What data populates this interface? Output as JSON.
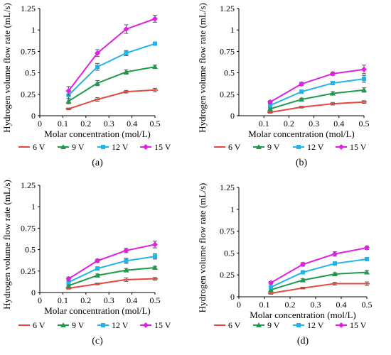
{
  "chart_data": [
    {
      "type": "line",
      "caption": "(a)",
      "xlabel": "Molar concentration (mol/L)",
      "ylabel": "Hydrogen volume flow rate (mL/s)",
      "xlim": [
        0,
        0.5
      ],
      "ylim": [
        0,
        1.25
      ],
      "xticks": [
        0,
        0.1,
        0.2,
        0.3,
        0.4,
        0.5
      ],
      "xtick_labels": [
        "0",
        "0.1",
        "0.2",
        "0.3",
        "0.4",
        "0.5"
      ],
      "yticks": [
        0,
        0.25,
        0.5,
        0.75,
        1,
        1.25
      ],
      "ytick_labels": [
        "0",
        "0.25",
        "0.5",
        "0.75",
        "1",
        "1.25"
      ],
      "legend_position": "bottom",
      "x": [
        0.125,
        0.25,
        0.375,
        0.5
      ],
      "series": [
        {
          "name": "6 V",
          "color": "#e8453c",
          "marker": "line",
          "values": [
            0.08,
            0.19,
            0.28,
            0.3
          ],
          "err": [
            0.01,
            0.02,
            0.015,
            0.02
          ]
        },
        {
          "name": "9 V",
          "color": "#1f9a4b",
          "marker": "triangle",
          "values": [
            0.17,
            0.38,
            0.51,
            0.57
          ],
          "err": [
            0.03,
            0.03,
            0.025,
            0.02
          ]
        },
        {
          "name": "12 V",
          "color": "#1fb5ea",
          "marker": "square",
          "values": [
            0.24,
            0.57,
            0.73,
            0.84
          ],
          "err": [
            0.04,
            0.04,
            0.03,
            0.015
          ]
        },
        {
          "name": "15 V",
          "color": "#e020e0",
          "marker": "diamond",
          "values": [
            0.29,
            0.73,
            1.01,
            1.13
          ],
          "err": [
            0.05,
            0.04,
            0.05,
            0.04
          ]
        }
      ]
    },
    {
      "type": "line",
      "caption": "(b)",
      "xlabel": "Molar concentration (mol/L)",
      "ylabel": "Hydrogen volume flow rate (mL/s)",
      "xlim": [
        0,
        0.5
      ],
      "ylim": [
        0,
        1.25
      ],
      "xticks": [
        0.1,
        0.2,
        0.3,
        0.4,
        0.5
      ],
      "xtick_labels": [
        "0.1",
        "0.2",
        "0.3",
        "0.4",
        "0.5"
      ],
      "yticks": [
        0,
        0.25,
        0.5,
        0.75,
        1,
        1.25
      ],
      "ytick_labels": [
        "0",
        "0.25",
        "0.5",
        "0.75",
        "1",
        "1.25"
      ],
      "legend_position": "bottom",
      "x": [
        0.125,
        0.25,
        0.375,
        0.5
      ],
      "series": [
        {
          "name": "6 V",
          "color": "#e8453c",
          "marker": "line",
          "values": [
            0.04,
            0.1,
            0.14,
            0.16
          ],
          "err": [
            0.01,
            0.01,
            0.015,
            0.015
          ]
        },
        {
          "name": "9 V",
          "color": "#1f9a4b",
          "marker": "triangle",
          "values": [
            0.08,
            0.19,
            0.26,
            0.3
          ],
          "err": [
            0.01,
            0.015,
            0.02,
            0.025
          ]
        },
        {
          "name": "12 V",
          "color": "#1fb5ea",
          "marker": "square",
          "values": [
            0.12,
            0.28,
            0.38,
            0.43
          ],
          "err": [
            0.015,
            0.02,
            0.02,
            0.04
          ]
        },
        {
          "name": "15 V",
          "color": "#e020e0",
          "marker": "diamond",
          "values": [
            0.16,
            0.37,
            0.49,
            0.54
          ],
          "err": [
            0.015,
            0.02,
            0.02,
            0.05
          ]
        }
      ]
    },
    {
      "type": "line",
      "caption": "(c)",
      "xlabel": "Molar concentration (mol/L)",
      "ylabel": "Hydrogen volume flow rate (mL/s)",
      "xlim": [
        0,
        0.5
      ],
      "ylim": [
        0,
        1.25
      ],
      "xticks": [
        0,
        0.1,
        0.2,
        0.3,
        0.4,
        0.5
      ],
      "xtick_labels": [
        "0",
        "0.1",
        "0.2",
        "0.3",
        "0.4",
        "0.5"
      ],
      "yticks": [
        0,
        0.25,
        0.5,
        0.75,
        1,
        1.25
      ],
      "ytick_labels": [
        "0",
        "0.25",
        "0.5",
        "0.75",
        "1",
        "1.25"
      ],
      "legend_position": "bottom",
      "x": [
        0.125,
        0.25,
        0.375,
        0.5
      ],
      "series": [
        {
          "name": "6 V",
          "color": "#e8453c",
          "marker": "line",
          "values": [
            0.05,
            0.1,
            0.15,
            0.16
          ],
          "err": [
            0.01,
            0.01,
            0.02,
            0.015
          ]
        },
        {
          "name": "9 V",
          "color": "#1f9a4b",
          "marker": "triangle",
          "values": [
            0.08,
            0.2,
            0.26,
            0.29
          ],
          "err": [
            0.01,
            0.015,
            0.02,
            0.015
          ]
        },
        {
          "name": "12 V",
          "color": "#1fb5ea",
          "marker": "square",
          "values": [
            0.12,
            0.28,
            0.37,
            0.42
          ],
          "err": [
            0.015,
            0.02,
            0.03,
            0.03
          ]
        },
        {
          "name": "15 V",
          "color": "#e020e0",
          "marker": "diamond",
          "values": [
            0.16,
            0.37,
            0.49,
            0.56
          ],
          "err": [
            0.02,
            0.02,
            0.025,
            0.04
          ]
        }
      ]
    },
    {
      "type": "line",
      "caption": "(d)",
      "xlabel": "Molar concentration (mol/L)",
      "ylabel": "Hydrogen volume flow rate (mL/s)",
      "xlim": [
        0,
        0.5
      ],
      "ylim": [
        0,
        1.25
      ],
      "xticks": [
        0,
        0.1,
        0.2,
        0.3,
        0.4,
        0.5
      ],
      "xtick_labels": [
        "0",
        "0.1",
        "0.2",
        "0.3",
        "0.4",
        "0.5"
      ],
      "yticks": [
        0,
        0.25,
        0.5,
        0.75,
        1,
        1.25
      ],
      "ytick_labels": [
        "0",
        "0.25",
        "0.5",
        "0.75",
        "1",
        "1.25"
      ],
      "legend_position": "bottom",
      "x": [
        0.125,
        0.25,
        0.375,
        0.5
      ],
      "series": [
        {
          "name": "6 V",
          "color": "#e8453c",
          "marker": "line",
          "values": [
            0.04,
            0.1,
            0.15,
            0.15
          ],
          "err": [
            0.01,
            0.01,
            0.015,
            0.02
          ]
        },
        {
          "name": "9 V",
          "color": "#1f9a4b",
          "marker": "triangle",
          "values": [
            0.08,
            0.19,
            0.26,
            0.28
          ],
          "err": [
            0.01,
            0.015,
            0.015,
            0.02
          ]
        },
        {
          "name": "12 V",
          "color": "#1fb5ea",
          "marker": "square",
          "values": [
            0.11,
            0.28,
            0.38,
            0.43
          ],
          "err": [
            0.015,
            0.015,
            0.02,
            0.02
          ]
        },
        {
          "name": "15 V",
          "color": "#e020e0",
          "marker": "diamond",
          "values": [
            0.16,
            0.37,
            0.49,
            0.56
          ],
          "err": [
            0.015,
            0.02,
            0.025,
            0.02
          ]
        }
      ]
    }
  ]
}
